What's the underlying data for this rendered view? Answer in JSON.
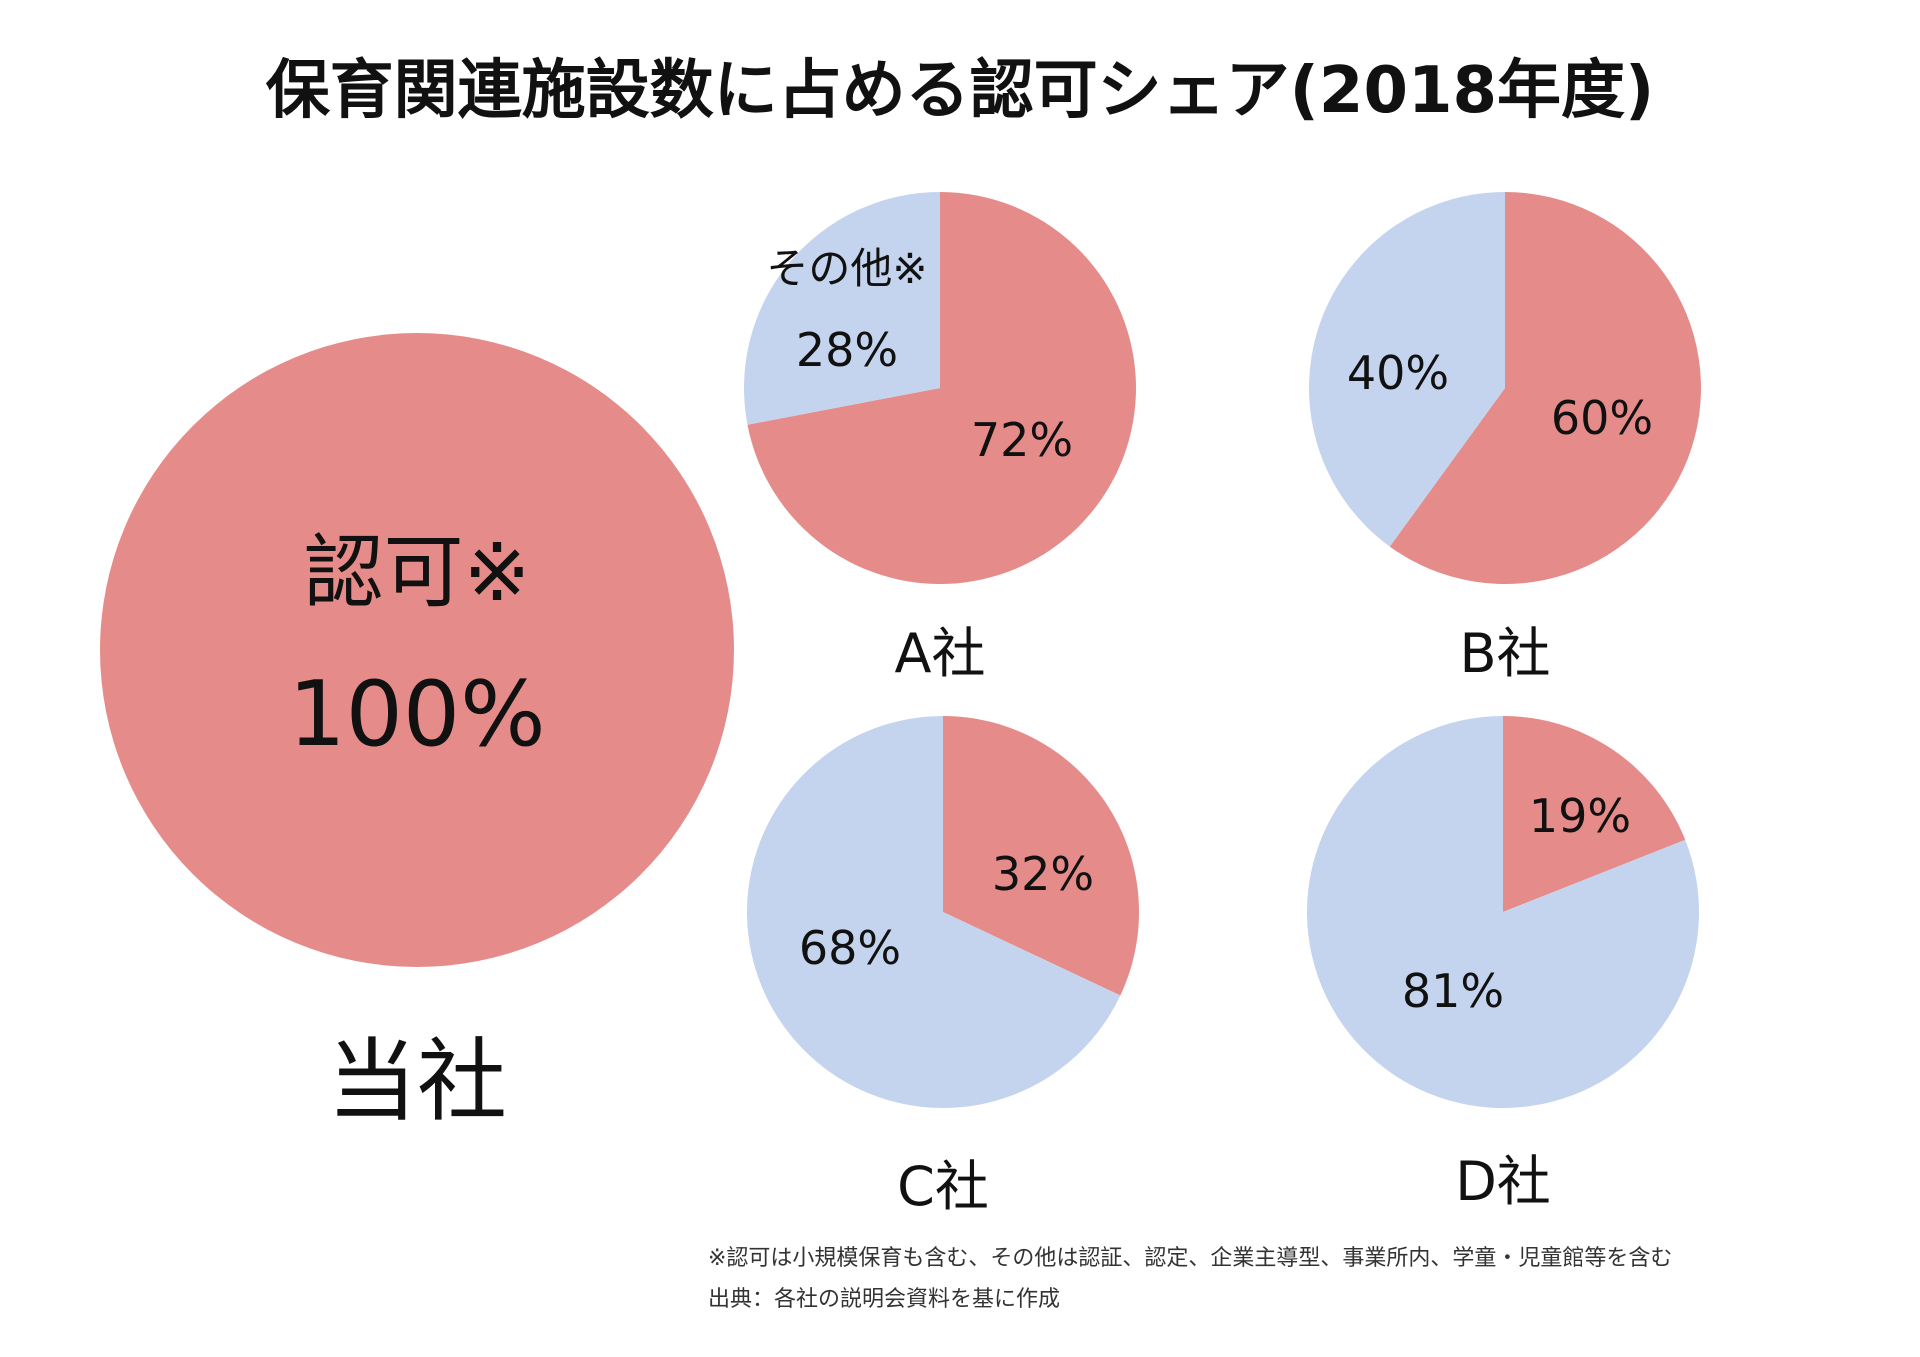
{
  "title": "保育関連施設数に占める認可シェア(2018年度)",
  "colors": {
    "ninka": "#e58c8a",
    "other": "#c5d4ee"
  },
  "chart_data": [
    {
      "type": "pie",
      "company": "当社",
      "slices": [
        {
          "label": "認可※",
          "value": 100,
          "display": "100%",
          "color": "#e58c8a"
        }
      ]
    },
    {
      "type": "pie",
      "company": "A社",
      "slices": [
        {
          "label": "",
          "value": 72,
          "display": "72%",
          "color": "#e58c8a"
        },
        {
          "label": "その他※",
          "value": 28,
          "display": "28%",
          "color": "#c5d4ee"
        }
      ]
    },
    {
      "type": "pie",
      "company": "B社",
      "slices": [
        {
          "label": "",
          "value": 60,
          "display": "60%",
          "color": "#e58c8a"
        },
        {
          "label": "",
          "value": 40,
          "display": "40%",
          "color": "#c5d4ee"
        }
      ]
    },
    {
      "type": "pie",
      "company": "C社",
      "slices": [
        {
          "label": "",
          "value": 32,
          "display": "32%",
          "color": "#e58c8a"
        },
        {
          "label": "",
          "value": 68,
          "display": "68%",
          "color": "#c5d4ee"
        }
      ]
    },
    {
      "type": "pie",
      "company": "D社",
      "slices": [
        {
          "label": "",
          "value": 19,
          "display": "19%",
          "color": "#e58c8a"
        },
        {
          "label": "",
          "value": 81,
          "display": "81%",
          "color": "#c5d4ee"
        }
      ]
    }
  ],
  "notes": {
    "line1": "※認可は小規模保育も含む、その他は認証、認定、企業主導型、事業所内、学童・児童館等を含む",
    "line2": "出典：各社の説明会資料を基に作成"
  }
}
